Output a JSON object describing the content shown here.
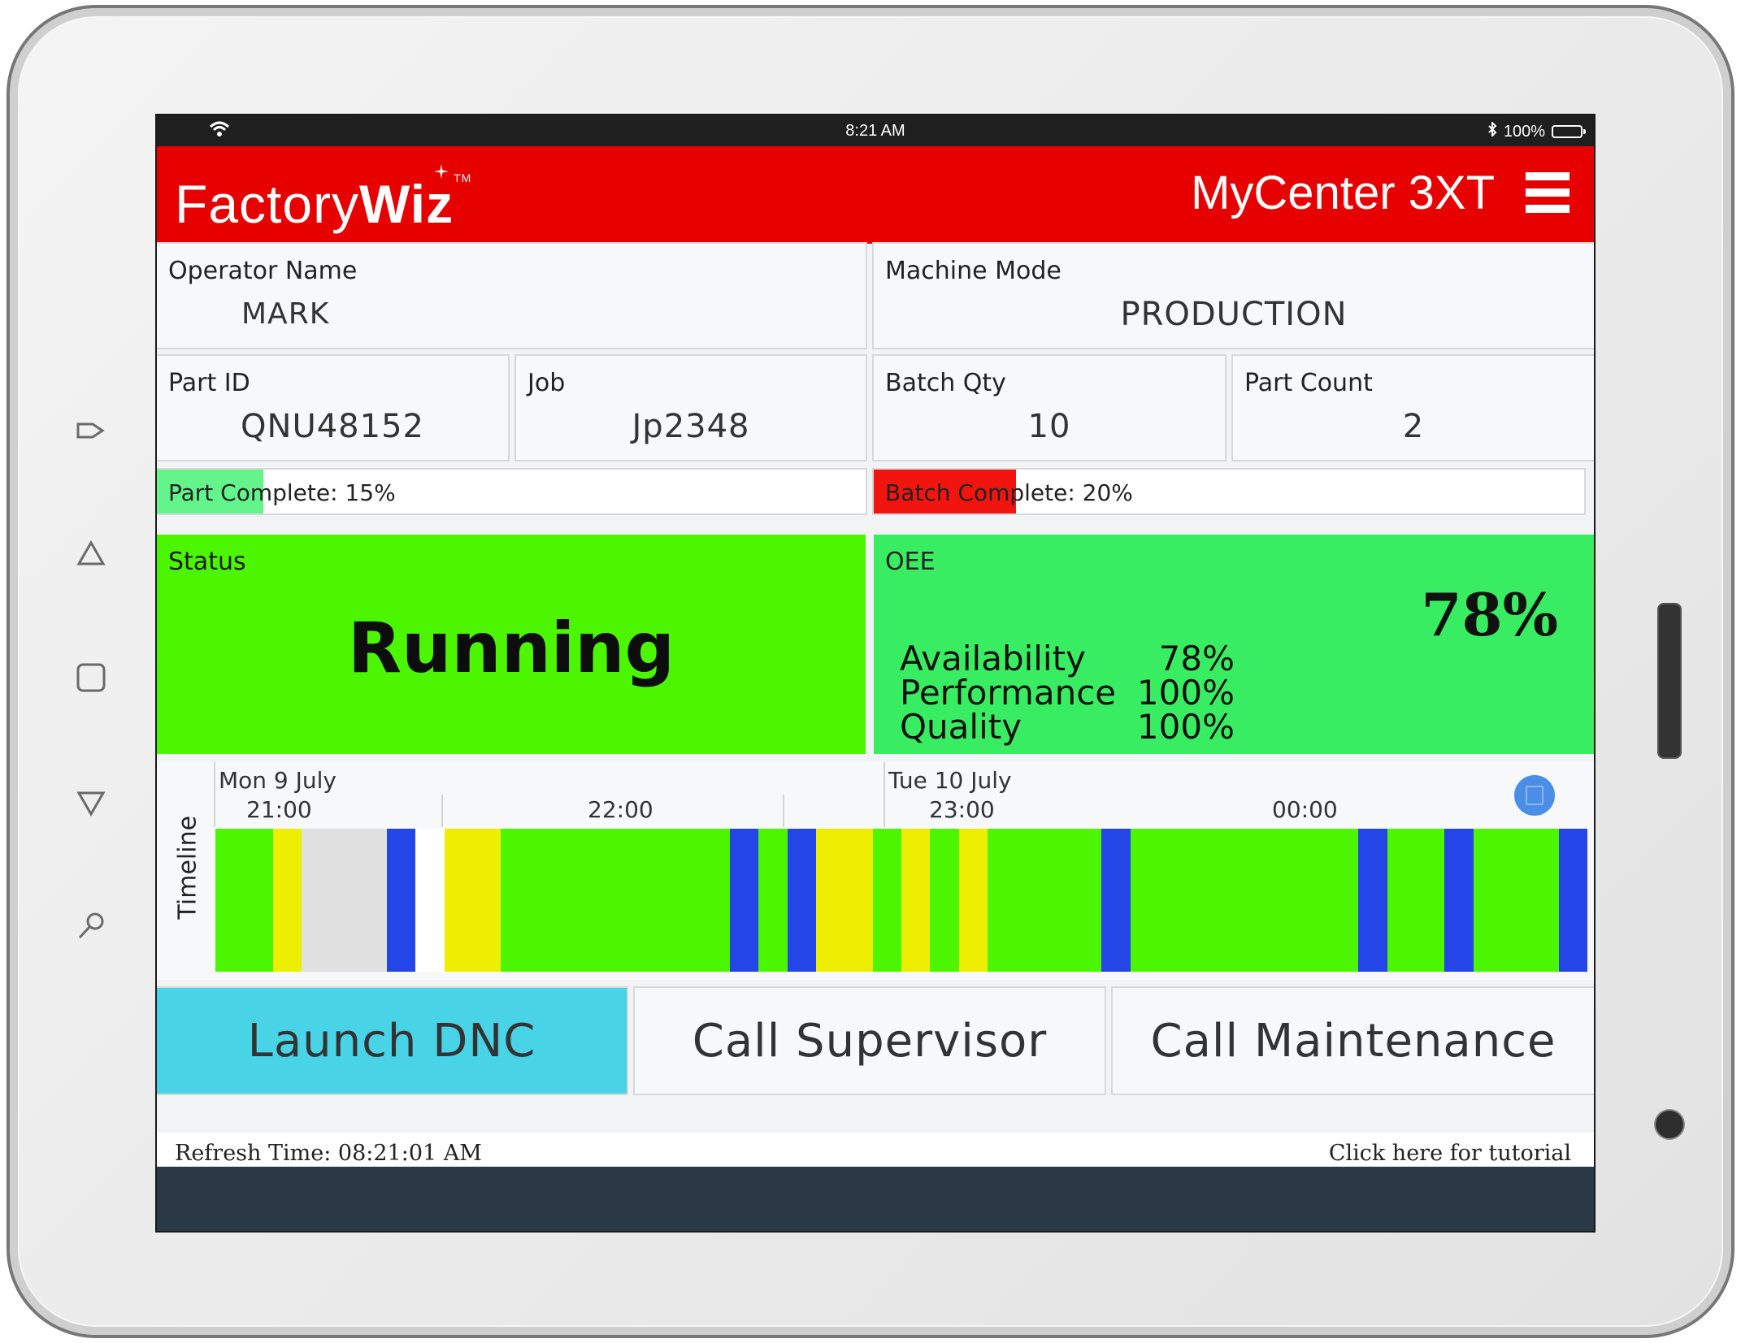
{
  "device": {
    "status_bar": {
      "time": "8:21 AM",
      "battery": "100%"
    },
    "side_icons": [
      "exit-icon",
      "triangle-up-icon",
      "square-icon",
      "triangle-down-icon",
      "search-icon"
    ]
  },
  "header": {
    "brand_plain": "Factory",
    "brand_bold": "Wiz",
    "brand_tm": "TM",
    "machine_name": "MyCenter 3XT",
    "color": "#e60000"
  },
  "fields": {
    "operator": {
      "label": "Operator Name",
      "value": "MARK"
    },
    "machine_mode": {
      "label": "Machine Mode",
      "value": "PRODUCTION"
    },
    "part_id": {
      "label": "Part ID",
      "value": "QNU48152"
    },
    "job": {
      "label": "Job",
      "value": "Jp2348"
    },
    "batch_qty": {
      "label": "Batch Qty",
      "value": "10"
    },
    "part_count": {
      "label": "Part Count",
      "value": "2"
    }
  },
  "progress": {
    "part": {
      "text": "Part Complete: 15%",
      "fraction": 0.15,
      "color": "#63f58b"
    },
    "batch": {
      "text": "Batch Complete: 20%",
      "fraction": 0.2,
      "color": "#f2140e"
    }
  },
  "status": {
    "label": "Status",
    "value": "Running",
    "color": "#4cf500"
  },
  "oee": {
    "label": "OEE",
    "value": "78%",
    "color": "#39ed62",
    "metrics": [
      {
        "name": "Availability",
        "value": "78%"
      },
      {
        "name": "Performance",
        "value": "100%"
      },
      {
        "name": "Quality",
        "value": "100%"
      }
    ]
  },
  "timeline": {
    "label": "Timeline",
    "dates": [
      "Mon 9 July",
      "Tue 10 July"
    ],
    "hours": [
      "21:00",
      "22:00",
      "23:00",
      "00:00"
    ],
    "colors": {
      "running": "#4cf500",
      "idle": "#eeee00",
      "setup": "#2445e8",
      "no_data": "#e0e0e0",
      "off": "#ffffff"
    },
    "segments": [
      {
        "state": "running",
        "start": 0.0,
        "end": 0.042
      },
      {
        "state": "idle",
        "start": 0.042,
        "end": 0.063
      },
      {
        "state": "no_data",
        "start": 0.063,
        "end": 0.125
      },
      {
        "state": "setup",
        "start": 0.125,
        "end": 0.146
      },
      {
        "state": "off",
        "start": 0.146,
        "end": 0.167
      },
      {
        "state": "idle",
        "start": 0.167,
        "end": 0.208
      },
      {
        "state": "running",
        "start": 0.208,
        "end": 0.375
      },
      {
        "state": "setup",
        "start": 0.375,
        "end": 0.396
      },
      {
        "state": "running",
        "start": 0.396,
        "end": 0.417
      },
      {
        "state": "setup",
        "start": 0.417,
        "end": 0.438
      },
      {
        "state": "idle",
        "start": 0.438,
        "end": 0.479
      },
      {
        "state": "running",
        "start": 0.479,
        "end": 0.5
      },
      {
        "state": "idle",
        "start": 0.5,
        "end": 0.521
      },
      {
        "state": "running",
        "start": 0.521,
        "end": 0.542
      },
      {
        "state": "idle",
        "start": 0.542,
        "end": 0.563
      },
      {
        "state": "running",
        "start": 0.563,
        "end": 0.646
      },
      {
        "state": "setup",
        "start": 0.646,
        "end": 0.667
      },
      {
        "state": "running",
        "start": 0.667,
        "end": 0.833
      },
      {
        "state": "setup",
        "start": 0.833,
        "end": 0.854
      },
      {
        "state": "running",
        "start": 0.854,
        "end": 0.896
      },
      {
        "state": "setup",
        "start": 0.896,
        "end": 0.917
      },
      {
        "state": "running",
        "start": 0.917,
        "end": 0.979
      },
      {
        "state": "setup",
        "start": 0.979,
        "end": 1.0
      }
    ]
  },
  "actions": [
    {
      "label": "Launch DNC",
      "color": "#48d3e6"
    },
    {
      "label": "Call Supervisor",
      "color": "#f7f8f9"
    },
    {
      "label": "Call Maintenance",
      "color": "#f7f8f9"
    }
  ],
  "footer": {
    "refresh": "Refresh Time: 08:21:01 AM",
    "tutorial": "Click here for tutorial"
  }
}
